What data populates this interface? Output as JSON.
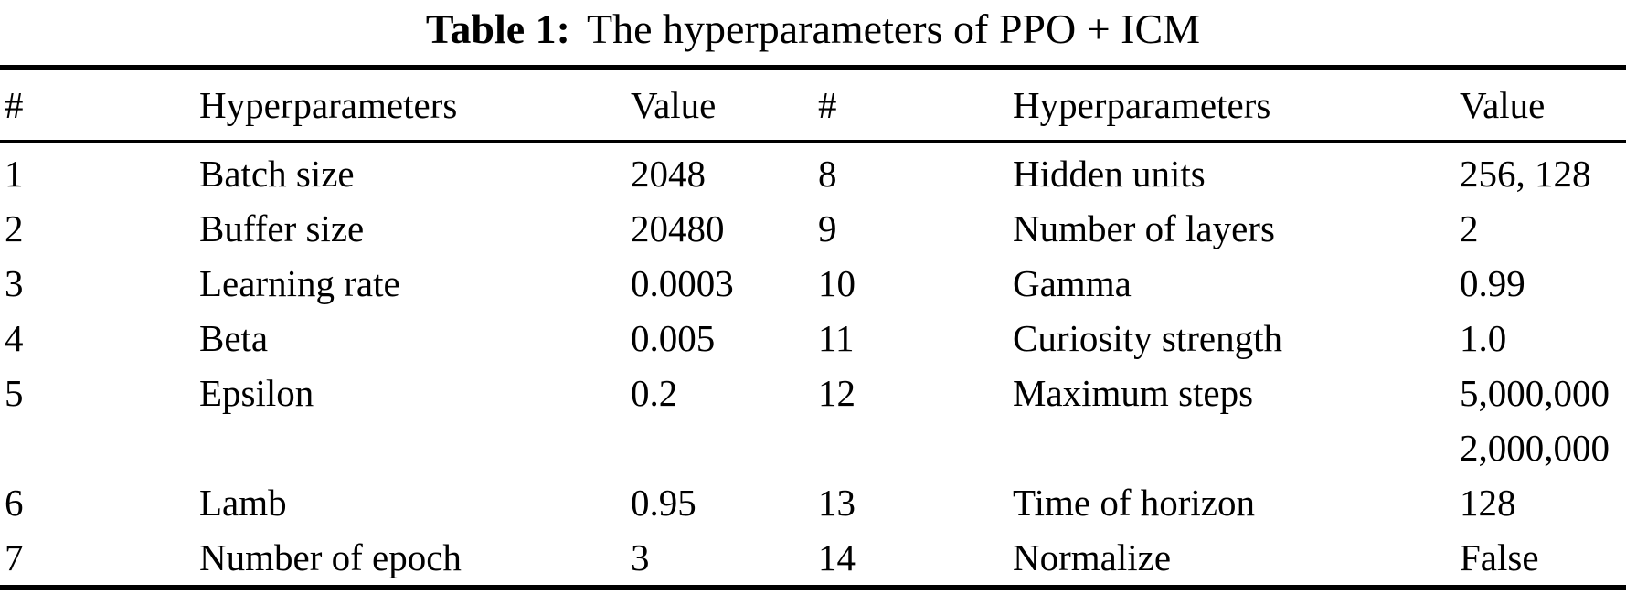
{
  "title": {
    "label": "Table 1:",
    "text": "The hyperparameters of PPO + ICM"
  },
  "colors": {
    "text": "#000000",
    "background": "#ffffff",
    "rule": "#000000"
  },
  "table": {
    "columns": [
      "#",
      "Hyperparameters",
      "Value",
      "#",
      "Hyperparameters",
      "Value"
    ],
    "rows": [
      {
        "num_left": "1",
        "param_left": "Batch size",
        "value_left": [
          "2048"
        ],
        "num_right": "8",
        "param_right": "Hidden units",
        "value_right": [
          "256, 128"
        ]
      },
      {
        "num_left": "2",
        "param_left": "Buffer size",
        "value_left": [
          "20480"
        ],
        "num_right": "9",
        "param_right": "Number of layers",
        "value_right": [
          "2"
        ]
      },
      {
        "num_left": "3",
        "param_left": "Learning rate",
        "value_left": [
          "0.0003"
        ],
        "num_right": "10",
        "param_right": "Gamma",
        "value_right": [
          "0.99"
        ]
      },
      {
        "num_left": "4",
        "param_left": "Beta",
        "value_left": [
          "0.005"
        ],
        "num_right": "11",
        "param_right": "Curiosity strength",
        "value_right": [
          "1.0"
        ]
      },
      {
        "num_left": "5",
        "param_left": "Epsilon",
        "value_left": [
          "0.2"
        ],
        "num_right": "12",
        "param_right": "Maximum steps",
        "value_right": [
          "5,000,000",
          "2,000,000"
        ]
      },
      {
        "num_left": "6",
        "param_left": "Lamb",
        "value_left": [
          "0.95"
        ],
        "num_right": "13",
        "param_right": "Time of horizon",
        "value_right": [
          "128"
        ]
      },
      {
        "num_left": "7",
        "param_left": "Number of epoch",
        "value_left": [
          "3"
        ],
        "num_right": "14",
        "param_right": "Normalize",
        "value_right": [
          "False"
        ]
      }
    ]
  }
}
